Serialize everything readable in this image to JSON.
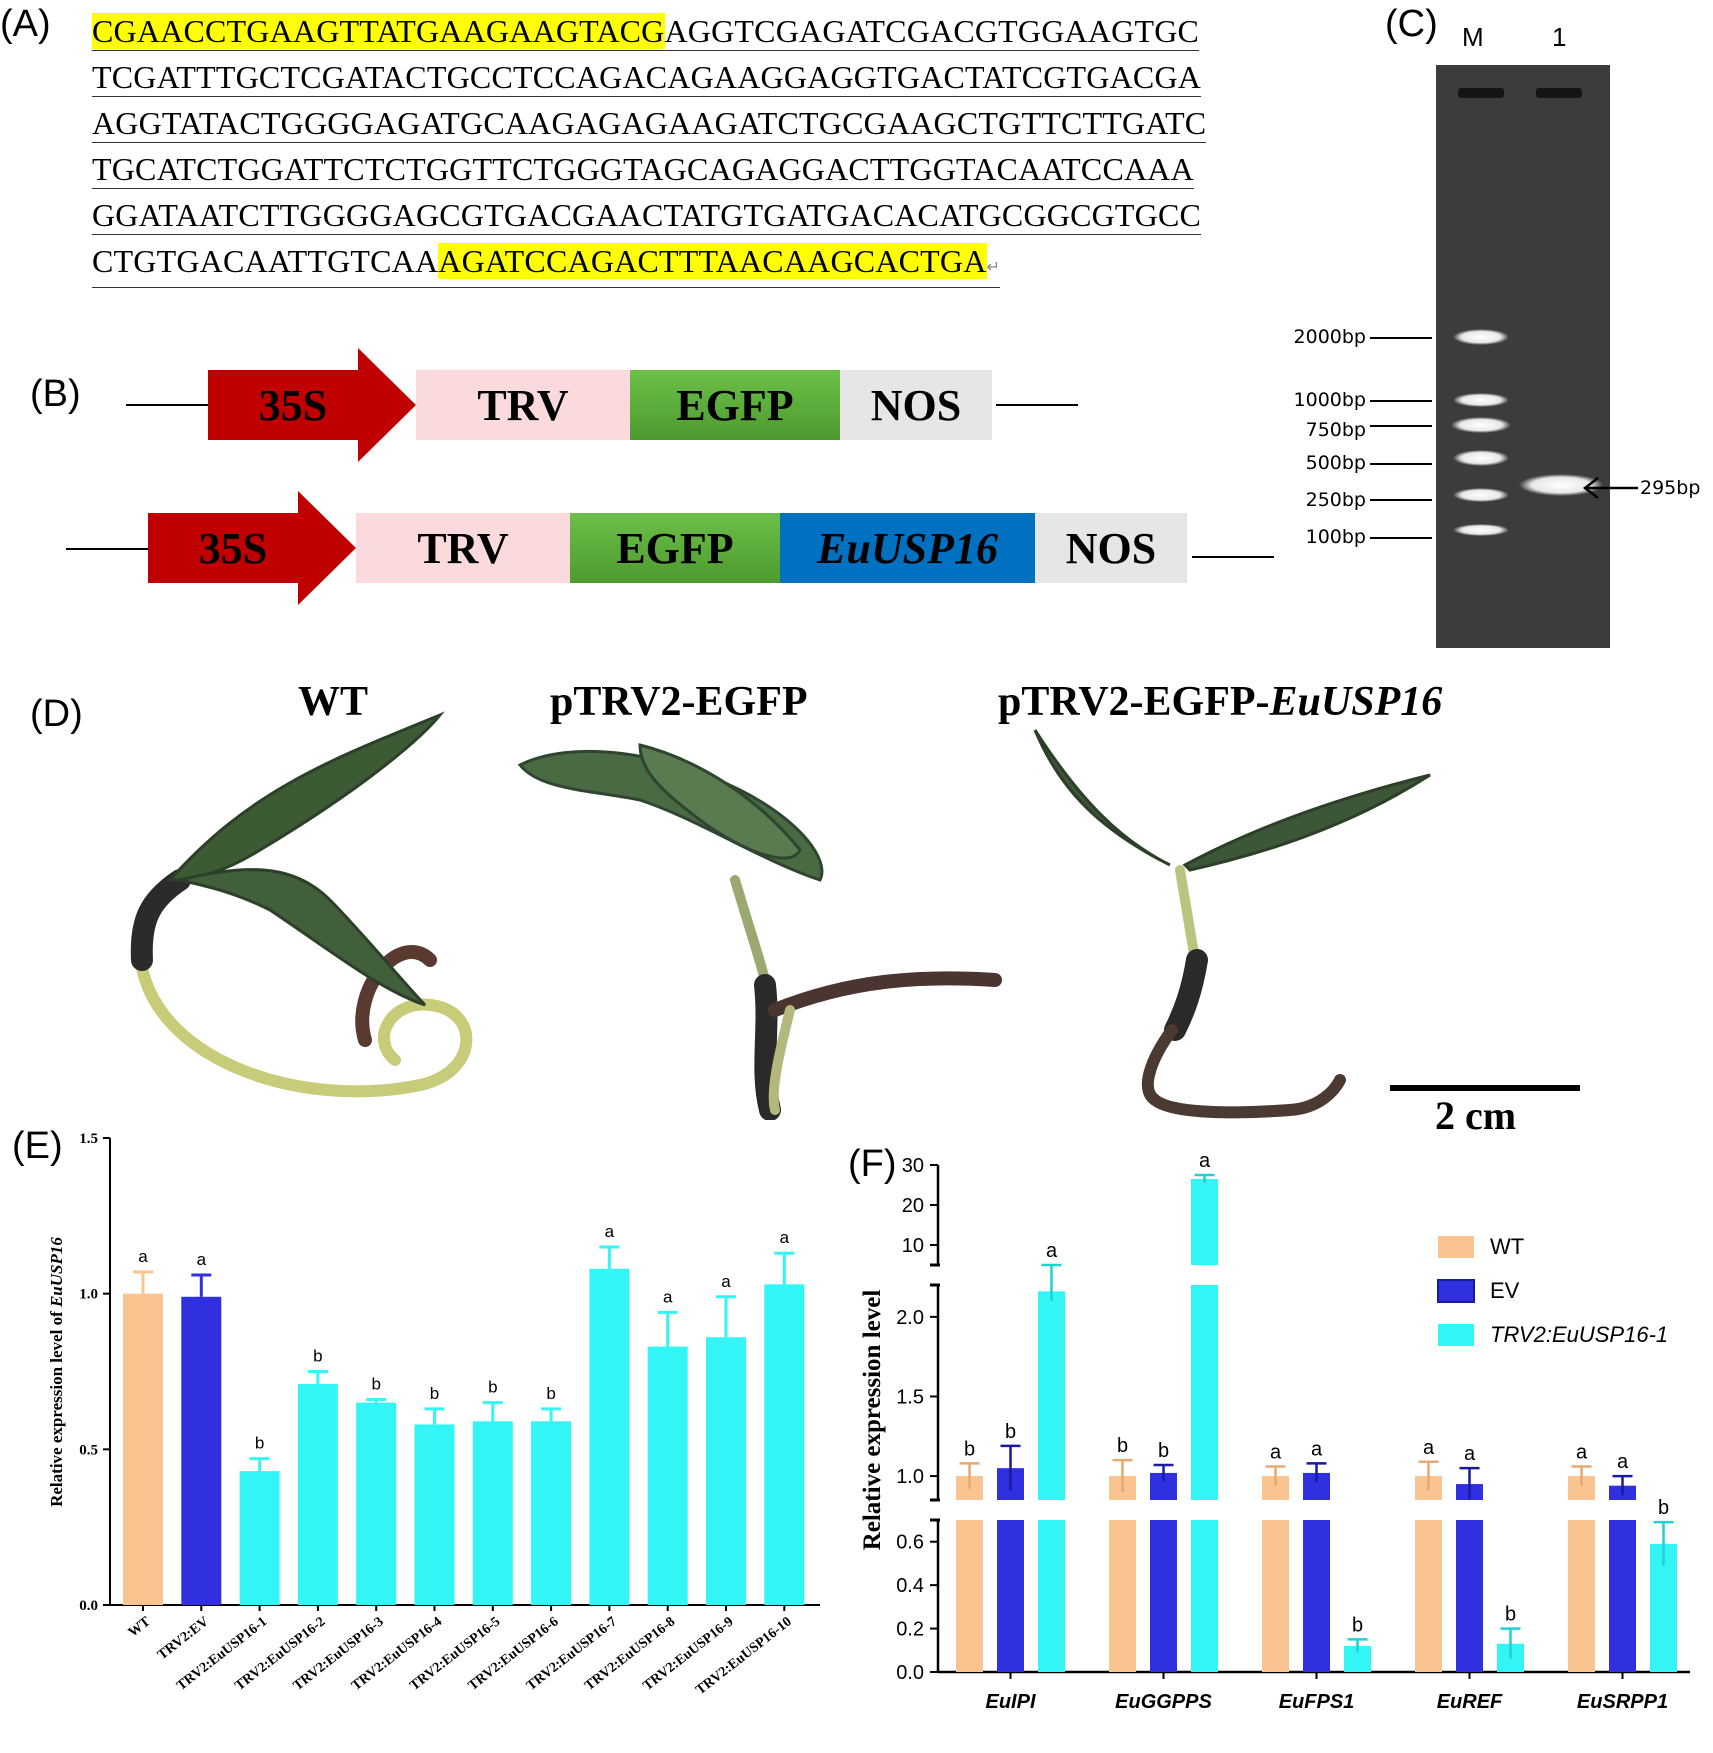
{
  "panels": {
    "a": "(A)",
    "b": "(B)",
    "c": "(C)",
    "d": "(D)",
    "e": "(E)",
    "f": "(F)"
  },
  "sequence": {
    "line1_hl": "CGAACCTGAAGTTATGAAGAAGTACG",
    "line1_rest": "AGGTCGAGATCGACGTGGAAGTGC",
    "line2": "TCGATTTGCTCGATACTGCCTCCAGACAGAAGGAGGTGACTATCGTGACGA",
    "line3": "AGGTATACTGGGGAGATGCAAGAGAGAAGATCTGCGAAGCTGTTCTTGATC",
    "line4": "TGCATCTGGATTCTCTGGTTCTGGGTAGCAGAGGACTTGGTACAATCCAAA",
    "line5": "GGATAATCTTGGGGAGCGTGACGAACTATGTGATGACACATGCGGCGTGCC",
    "line6_start": "CTGTGACAATTGTCAA",
    "line6_hl": "AGATCCAGACTTTAACAAGCACTGA",
    "para_mark": "↵"
  },
  "constructs": {
    "promoter": "35S",
    "trv": "TRV",
    "egfp": "EGFP",
    "gene": "EuUSP16",
    "nos": "NOS"
  },
  "gel": {
    "lane_m": "M",
    "lane_1": "1",
    "ladder": [
      "2000bp",
      "1000bp",
      "750bp",
      "500bp",
      "250bp",
      "100bp"
    ],
    "band": "295bp"
  },
  "plants": {
    "wt": "WT",
    "ev": "pTRV2-EGFP",
    "kd_prefix": "pTRV2-EGFP-",
    "kd_gene": "EuUSP16",
    "scale": "2 cm"
  },
  "colors": {
    "wt": "#f9c48f",
    "ev": "#3030e0",
    "trv": "#33f5f5",
    "highlight": "#ffff00",
    "promoter": "#c00000",
    "trv_box": "#fadadd",
    "egfp_box": "#5cab3a",
    "gene_box": "#0070c0",
    "nos_box": "#e6e6e6"
  },
  "chart_data": [
    {
      "type": "bar",
      "title": "",
      "xlabel": "",
      "ylabel_prefix": "Relative expression level of",
      "ylabel_gene": "EuUSP16",
      "ylim": [
        0,
        1.5
      ],
      "yticks": [
        "0.0",
        "0.5",
        "1.0",
        "1.5"
      ],
      "categories": [
        "WT",
        "TRV2:EV",
        "TRV2:EuUSP16-1",
        "TRV2:EuUSP16-2",
        "TRV2:EuUSP16-3",
        "TRV2:EuUSP16-4",
        "TRV2:EuUSP16-5",
        "TRV2:EuUSP16-6",
        "TRV2:EuUSP16-7",
        "TRV2:EuUSP16-8",
        "TRV2:EuUSP16-9",
        "TRV2:EuUSP16-10"
      ],
      "values": [
        1.0,
        0.99,
        0.43,
        0.71,
        0.65,
        0.58,
        0.59,
        0.59,
        1.08,
        0.83,
        0.86,
        1.03
      ],
      "errors": [
        0.07,
        0.07,
        0.04,
        0.04,
        0.01,
        0.05,
        0.06,
        0.04,
        0.07,
        0.11,
        0.13,
        0.1
      ],
      "letters": [
        "a",
        "a",
        "b",
        "b",
        "b",
        "b",
        "b",
        "b",
        "a",
        "a",
        "a",
        "a"
      ]
    },
    {
      "type": "bar",
      "title": "",
      "xlabel": "",
      "ylabel": "Relative expression level",
      "broken_axis": true,
      "axis_segments": [
        [
          0,
          0.7
        ],
        [
          0.85,
          2.2
        ],
        [
          5,
          30
        ]
      ],
      "yticks": [
        "0.0",
        "0.2",
        "0.4",
        "0.6",
        "1.0",
        "1.5",
        "2.0",
        "10",
        "20",
        "30"
      ],
      "categories": [
        "EuIPI",
        "EuGGPPS",
        "EuFPS1",
        "EuREF",
        "EuSRPP1"
      ],
      "legend_position": "right",
      "series": [
        {
          "name": "WT",
          "values": [
            1.0,
            1.0,
            1.0,
            1.0,
            1.0
          ],
          "errors": [
            0.08,
            0.1,
            0.06,
            0.09,
            0.06
          ],
          "letters": [
            "b",
            "b",
            "a",
            "a",
            "a"
          ]
        },
        {
          "name": "EV",
          "values": [
            1.05,
            1.02,
            1.02,
            0.95,
            0.94
          ],
          "errors": [
            0.14,
            0.05,
            0.06,
            0.1,
            0.06
          ],
          "letters": [
            "b",
            "b",
            "a",
            "a",
            "a"
          ]
        },
        {
          "name": "TRV2:EuUSP16-1",
          "values": [
            2.16,
            26.5,
            0.12,
            0.13,
            0.59
          ],
          "errors": [
            0.06,
            1.0,
            0.03,
            0.07,
            0.1
          ],
          "letters": [
            "a",
            "a",
            "b",
            "b",
            "b"
          ]
        }
      ]
    }
  ]
}
